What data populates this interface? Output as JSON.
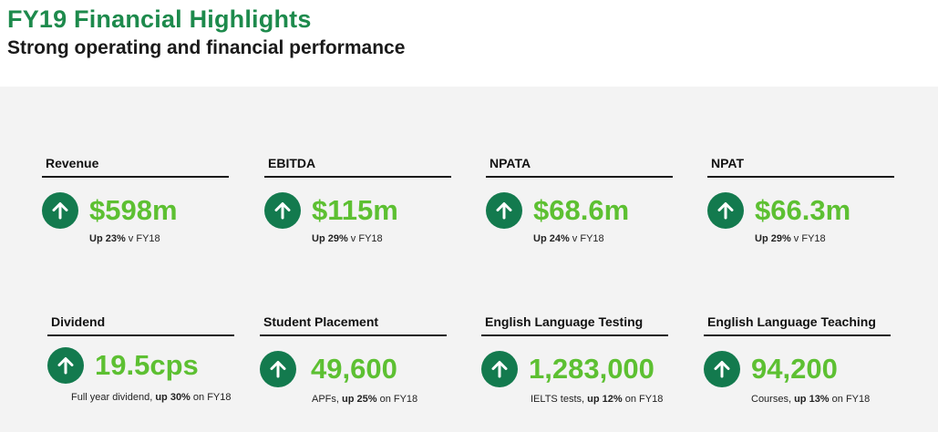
{
  "header": {
    "title": "FY19 Financial Highlights",
    "subtitle": "Strong operating and financial performance"
  },
  "colors": {
    "accent_green": "#5dc032",
    "dark_green": "#137a4e",
    "title_green": "#1d8a4c"
  },
  "metrics": [
    {
      "label": "Revenue",
      "icon": "arrow-up-icon",
      "value": "$598m",
      "note_pre": "",
      "note_bold": "Up 23%",
      "note_post": " v FY18"
    },
    {
      "label": "EBITDA",
      "icon": "arrow-up-icon",
      "value": "$115m",
      "note_pre": "",
      "note_bold": "Up 29%",
      "note_post": " v FY18"
    },
    {
      "label": "NPATA",
      "icon": "arrow-up-icon",
      "value": "$68.6m",
      "note_pre": "",
      "note_bold": "Up 24%",
      "note_post": " v FY18"
    },
    {
      "label": "NPAT",
      "icon": "arrow-up-icon",
      "value": "$66.3m",
      "note_pre": "",
      "note_bold": "Up 29%",
      "note_post": " v FY18"
    },
    {
      "label": "Dividend",
      "icon": "arrow-up-icon",
      "value": "19.5cps",
      "note_pre": "Full year dividend, ",
      "note_bold": "up 30%",
      "note_post": " on FY18"
    },
    {
      "label": "Student Placement",
      "icon": "arrow-up-icon",
      "value": "49,600",
      "note_pre": "APFs, ",
      "note_bold": "up 25%",
      "note_post": " on FY18"
    },
    {
      "label": "English Language Testing",
      "icon": "arrow-up-icon",
      "value": "1,283,000",
      "note_pre": "IELTS tests, ",
      "note_bold": "up 12%",
      "note_post": " on FY18"
    },
    {
      "label": "English Language Teaching",
      "icon": "arrow-up-icon",
      "value": "94,200",
      "note_pre": "Courses, ",
      "note_bold": "up 13%",
      "note_post": " on FY18"
    }
  ]
}
